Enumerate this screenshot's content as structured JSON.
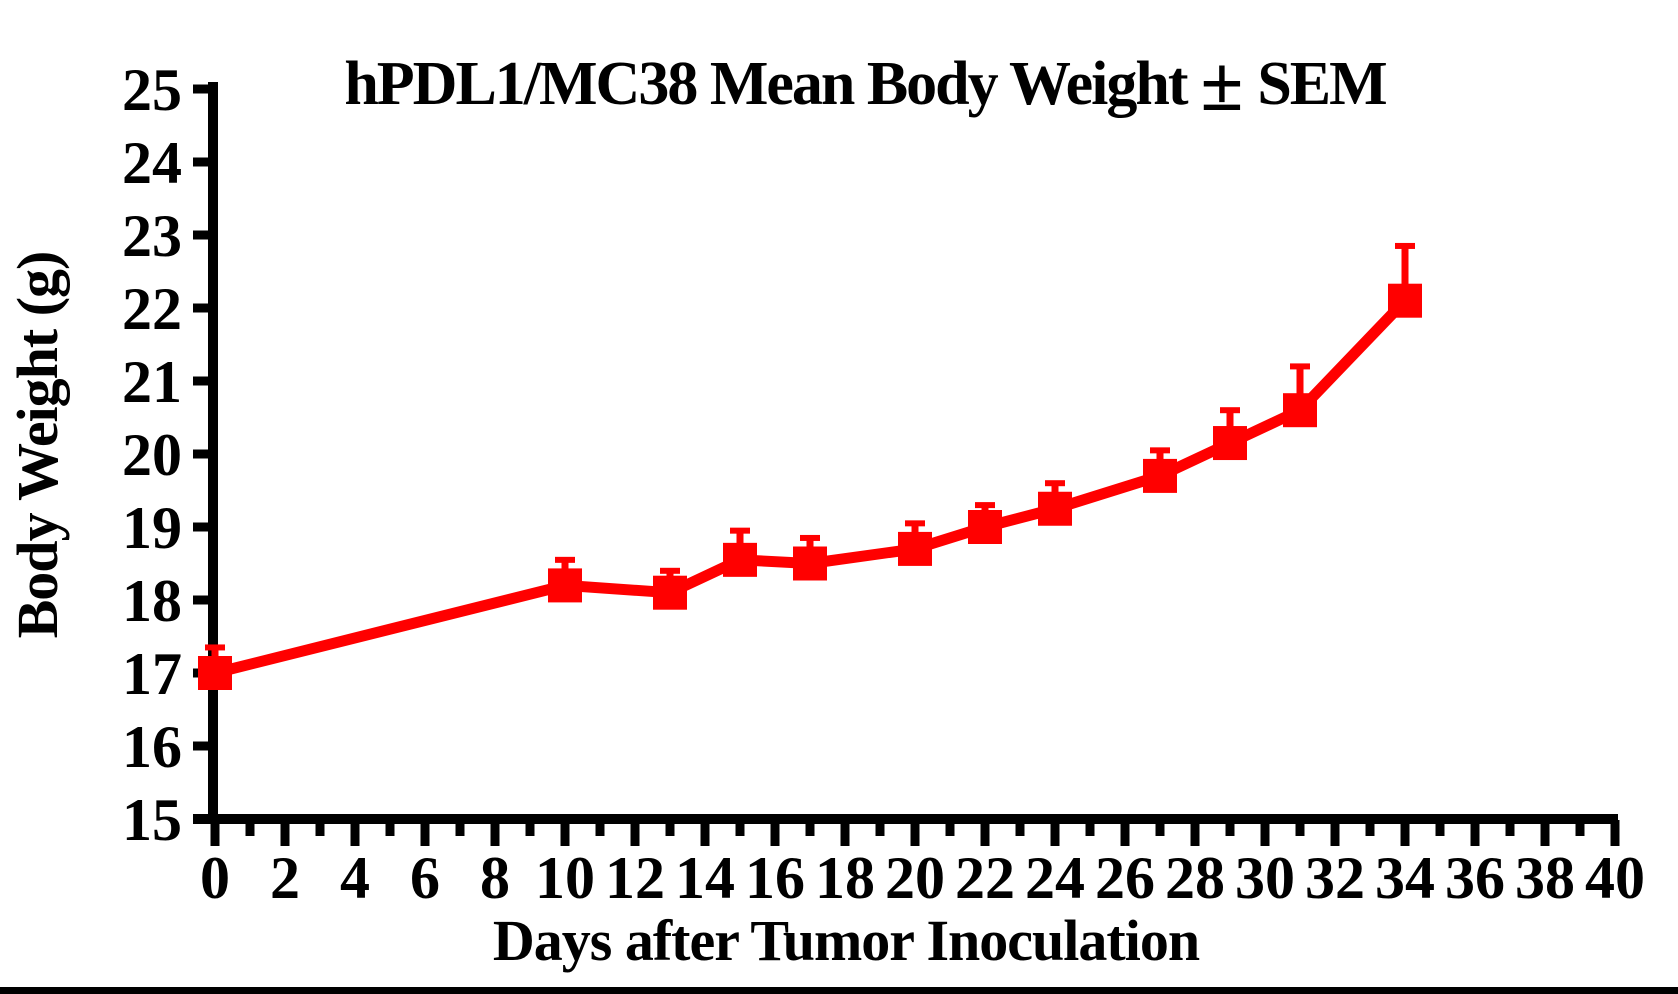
{
  "page": {
    "background": "#FFFFFF",
    "bottom_bar_color": "#000000"
  },
  "colors": {
    "series": "#FF0000",
    "axis": "#000000",
    "text": "#000000",
    "background": "#FFFFFF"
  },
  "chart_data": {
    "type": "line",
    "title": "hPDL1/MC38 Mean Body Weight ± SEM",
    "title_parts": {
      "pre": "hPDL1/MC38 Mean Body Weight",
      "plus_minus": "±",
      "post": "SEM"
    },
    "xlabel": "Days after Tumor Inoculation",
    "ylabel": "Body Weight (g)",
    "xlim": [
      0,
      40
    ],
    "ylim": [
      15,
      25
    ],
    "grid": false,
    "legend": "none",
    "error_bars": "SEM, upper bar only",
    "x_major_ticks": [
      0,
      2,
      4,
      6,
      8,
      10,
      12,
      14,
      16,
      18,
      20,
      22,
      24,
      26,
      28,
      30,
      32,
      34,
      36,
      38,
      40
    ],
    "x_minor_ticks": [
      1,
      3,
      5,
      7,
      9,
      11,
      13,
      15,
      17,
      19,
      21,
      23,
      25,
      27,
      29,
      31,
      33,
      35,
      37,
      39
    ],
    "y_ticks": [
      15,
      16,
      17,
      18,
      19,
      20,
      21,
      22,
      23,
      24,
      25
    ],
    "series": [
      {
        "name": "hPDL1/MC38 mean body weight",
        "color": "#FF0000",
        "marker": "filled-square",
        "x": [
          0,
          10,
          13,
          15,
          17,
          20,
          22,
          24,
          27,
          29,
          31,
          34
        ],
        "y": [
          17.0,
          18.2,
          18.1,
          18.55,
          18.5,
          18.7,
          19.0,
          19.25,
          19.7,
          20.15,
          20.6,
          22.1
        ],
        "sem": [
          0.35,
          0.35,
          0.3,
          0.4,
          0.35,
          0.35,
          0.3,
          0.35,
          0.35,
          0.45,
          0.6,
          0.75
        ]
      }
    ]
  }
}
